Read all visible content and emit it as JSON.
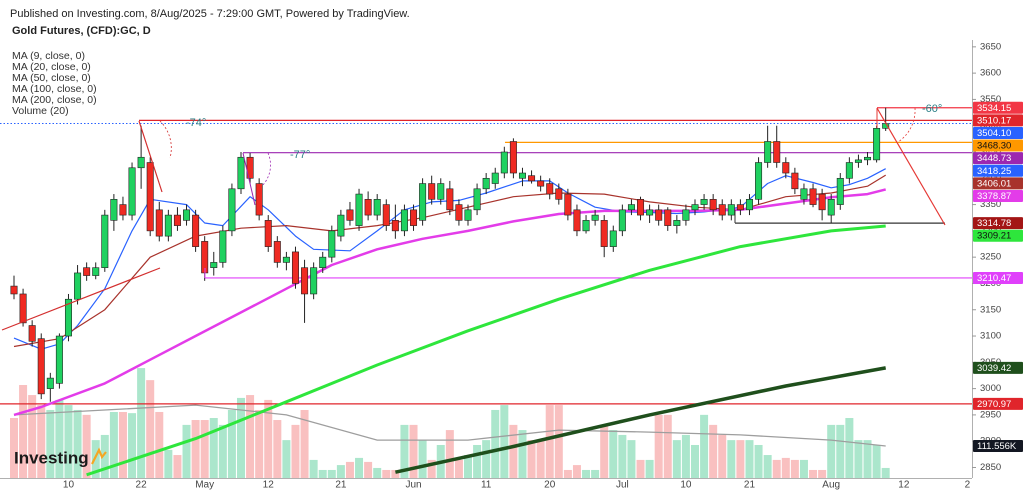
{
  "header": {
    "published": "Published on Investing.com, 8/Aug/2025 - 7:29:00 GMT, Powered by TradingView."
  },
  "logo": "Investing",
  "chart_data": {
    "type": "candlestick",
    "title": "Gold Futures, (CFD):GC, D",
    "categories": [
      null,
      null,
      null,
      null,
      null,
      null,
      "10",
      null,
      null,
      null,
      null,
      null,
      null,
      null,
      "22",
      null,
      null,
      null,
      null,
      null,
      null,
      "May",
      null,
      null,
      null,
      null,
      null,
      null,
      "12",
      null,
      null,
      null,
      null,
      null,
      null,
      null,
      "21",
      null,
      null,
      null,
      null,
      null,
      null,
      null,
      "Jun",
      null,
      null,
      null,
      null,
      null,
      null,
      null,
      "11",
      null,
      null,
      null,
      null,
      null,
      null,
      "20",
      null,
      null,
      null,
      null,
      null,
      null,
      null,
      "Jul",
      null,
      null,
      null,
      null,
      null,
      null,
      "10",
      null,
      null,
      null,
      null,
      null,
      null,
      "21",
      null,
      null,
      null,
      null,
      null,
      null,
      null,
      null,
      "Aug",
      null,
      null,
      null,
      null,
      null,
      null,
      null,
      "12",
      null,
      null,
      null,
      null,
      null,
      null,
      "2"
    ],
    "open": [
      3195,
      3180,
      3120,
      3095,
      3000,
      3010,
      3100,
      3170,
      3230,
      3215,
      3230,
      3320,
      3350,
      3330,
      3420,
      3430,
      3340,
      3290,
      3330,
      3320,
      3330,
      3280,
      3230,
      3240,
      3300,
      3380,
      3440,
      3390,
      3320,
      3280,
      3240,
      3260,
      3230,
      3180,
      3230,
      3250,
      3290,
      3340,
      3310,
      3360,
      3330,
      3350,
      3320,
      3300,
      3340,
      3320,
      3390,
      3360,
      3380,
      3350,
      3320,
      3340,
      3380,
      3390,
      3410,
      3470,
      3400,
      3405,
      3395,
      3390,
      3380,
      3370,
      3340,
      3300,
      3320,
      3320,
      3270,
      3300,
      3340,
      3360,
      3330,
      3340,
      3340,
      3310,
      3320,
      3340,
      3350,
      3360,
      3350,
      3330,
      3350,
      3340,
      3360,
      3430,
      3470,
      3430,
      3410,
      3360,
      3380,
      3370,
      3330,
      3350,
      3400,
      3430,
      3435,
      3435,
      3495,
      null,
      null,
      null,
      null,
      null,
      null,
      null,
      null,
      null
    ],
    "high": [
      3215,
      3190,
      3130,
      3105,
      3030,
      3105,
      3180,
      3235,
      3240,
      3240,
      3340,
      3370,
      3365,
      3430,
      3500,
      3440,
      3355,
      3340,
      3345,
      3350,
      3340,
      3290,
      3260,
      3310,
      3390,
      3450,
      3448,
      3400,
      3330,
      3290,
      3260,
      3270,
      3245,
      3240,
      3260,
      3310,
      3340,
      3355,
      3380,
      3375,
      3370,
      3360,
      3350,
      3350,
      3350,
      3400,
      3405,
      3400,
      3395,
      3360,
      3350,
      3390,
      3410,
      3420,
      3460,
      3476,
      3420,
      3415,
      3405,
      3400,
      3390,
      3380,
      3350,
      3330,
      3340,
      3330,
      3310,
      3350,
      3360,
      3365,
      3350,
      3350,
      3345,
      3330,
      3350,
      3360,
      3370,
      3370,
      3360,
      3360,
      3360,
      3370,
      3440,
      3500,
      3500,
      3440,
      3420,
      3390,
      3390,
      3380,
      3370,
      3410,
      3440,
      3445,
      3450,
      3500,
      3534.15,
      null,
      null,
      null,
      null,
      null,
      null,
      null,
      null,
      null
    ],
    "low": [
      3170,
      3118,
      3080,
      2980,
      2975,
      3000,
      3090,
      3160,
      3205,
      3208,
      3222,
      3300,
      3320,
      3320,
      3380,
      3290,
      3280,
      3280,
      3300,
      3310,
      3260,
      3205,
      3215,
      3230,
      3290,
      3370,
      3390,
      3320,
      3260,
      3230,
      3225,
      3190,
      3125,
      3170,
      3220,
      3240,
      3280,
      3310,
      3300,
      3320,
      3320,
      3300,
      3285,
      3290,
      3300,
      3310,
      3350,
      3350,
      3330,
      3310,
      3310,
      3330,
      3370,
      3380,
      3400,
      3400,
      3385,
      3390,
      3375,
      3360,
      3350,
      3320,
      3290,
      3295,
      3310,
      3250,
      3260,
      3290,
      3330,
      3320,
      3315,
      3310,
      3300,
      3295,
      3310,
      3330,
      3340,
      3330,
      3320,
      3320,
      3330,
      3330,
      3350,
      3420,
      3420,
      3400,
      3370,
      3350,
      3345,
      3320,
      3315,
      3340,
      3390,
      3420,
      3425,
      3430,
      3490,
      null,
      null,
      null,
      null,
      null,
      null,
      null,
      null,
      null
    ],
    "close": [
      3180,
      3125,
      3090,
      2990,
      3020,
      3100,
      3170,
      3220,
      3215,
      3230,
      3330,
      3360,
      3330,
      3420,
      3440,
      3300,
      3290,
      3330,
      3310,
      3340,
      3270,
      3220,
      3240,
      3300,
      3380,
      3440,
      3400,
      3330,
      3270,
      3240,
      3250,
      3200,
      3180,
      3230,
      3250,
      3300,
      3330,
      3320,
      3370,
      3330,
      3360,
      3310,
      3300,
      3340,
      3310,
      3390,
      3360,
      3390,
      3340,
      3320,
      3340,
      3380,
      3400,
      3410,
      3450,
      3410,
      3410,
      3395,
      3385,
      3370,
      3360,
      3330,
      3300,
      3320,
      3330,
      3270,
      3300,
      3340,
      3350,
      3330,
      3340,
      3320,
      3310,
      3320,
      3340,
      3350,
      3360,
      3340,
      3330,
      3350,
      3340,
      3360,
      3430,
      3470,
      3430,
      3410,
      3380,
      3380,
      3350,
      3340,
      3360,
      3400,
      3430,
      3435,
      3440,
      3495,
      3504.1,
      null,
      null,
      null,
      null,
      null,
      null,
      null,
      null,
      null
    ],
    "up_color": "#1fd160",
    "down_color": "#ef2a22",
    "ylim": [
      2830,
      3663
    ],
    "yticks": [
      2850,
      2900,
      2950,
      3000,
      3050,
      3100,
      3150,
      3200,
      3250,
      3300,
      3350,
      3400,
      3450,
      3500,
      3550,
      3600,
      3650
    ],
    "moving_averages": [
      {
        "name": "MA (9, close, 0)",
        "color": "#2962ff",
        "width": 1.2,
        "x": [
          0,
          3,
          5,
          7,
          10,
          13,
          15,
          19,
          21,
          23,
          26,
          28,
          31,
          33,
          37,
          40,
          43,
          46,
          49,
          52,
          56,
          59,
          61,
          64,
          67,
          70,
          73,
          76,
          78,
          80,
          83,
          85,
          88,
          90,
          92,
          94,
          96
        ],
        "values": [
          3096,
          3075,
          3085,
          3120,
          3190,
          3300,
          3360,
          3350,
          3315,
          3310,
          3365,
          3340,
          3290,
          3265,
          3262,
          3300,
          3340,
          3355,
          3358,
          3372,
          3395,
          3395,
          3372,
          3345,
          3336,
          3335,
          3333,
          3336,
          3340,
          3345,
          3390,
          3405,
          3392,
          3382,
          3388,
          3400,
          3418.25
        ],
        "last_label": "3418.25"
      },
      {
        "name": "MA (20, close, 0)",
        "color": "#a8332c",
        "width": 1.2,
        "x": [
          0,
          5,
          10,
          15,
          20,
          25,
          30,
          35,
          40,
          45,
          50,
          55,
          60,
          65,
          70,
          75,
          80,
          85,
          90,
          94,
          96
        ],
        "values": [
          3080,
          3095,
          3150,
          3250,
          3290,
          3305,
          3310,
          3300,
          3310,
          3325,
          3345,
          3365,
          3372,
          3370,
          3355,
          3345,
          3340,
          3365,
          3372,
          3385,
          3406.01
        ],
        "last_label": "3406.01"
      },
      {
        "name": "MA (50, close, 0)",
        "color": "#e33ce9",
        "width": 2.5,
        "x": [
          0,
          3,
          10,
          15,
          20,
          25,
          30,
          35,
          40,
          45,
          50,
          55,
          60,
          65,
          70,
          75,
          80,
          85,
          90,
          94,
          96
        ],
        "values": [
          2950,
          2965,
          3010,
          3055,
          3100,
          3145,
          3190,
          3235,
          3265,
          3285,
          3300,
          3318,
          3332,
          3338,
          3338,
          3338,
          3340,
          3352,
          3364,
          3370,
          3378.87
        ],
        "last_label": "3378.87"
      },
      {
        "name": "MA (100, close, 0)",
        "color": "#2ee63c",
        "width": 3,
        "x": [
          8,
          20,
          30,
          40,
          50,
          60,
          70,
          80,
          90,
          96
        ],
        "values": [
          2836,
          2905,
          2975,
          3045,
          3110,
          3170,
          3225,
          3270,
          3300,
          3309.21
        ],
        "last_label": "3309.21"
      },
      {
        "name": "MA (200, close, 0)",
        "color": "#1f4f1c",
        "width": 3.5,
        "x": [
          42,
          55,
          70,
          85,
          96
        ],
        "values": [
          2841,
          2890,
          2950,
          3005,
          3039.42
        ],
        "last_label": "3039.42"
      }
    ],
    "volume": {
      "name": "Volume (20)",
      "ylim": [
        0,
        1526
      ],
      "up_color": "#a2e3c6",
      "down_color": "#f8b9b9",
      "values": [
        209,
        324,
        289,
        254,
        237,
        272,
        254,
        237,
        220,
        132,
        150,
        230,
        230,
        226,
        383,
        341,
        230,
        98,
        80,
        185,
        202,
        202,
        209,
        185,
        237,
        279,
        289,
        237,
        272,
        202,
        132,
        185,
        237,
        63,
        28,
        28,
        45,
        56,
        70,
        56,
        35,
        28,
        28,
        185,
        185,
        132,
        63,
        115,
        167,
        63,
        80,
        115,
        132,
        237,
        254,
        185,
        167,
        132,
        132,
        254,
        254,
        28,
        45,
        28,
        28,
        185,
        167,
        150,
        132,
        63,
        63,
        220,
        220,
        132,
        150,
        115,
        220,
        185,
        150,
        132,
        132,
        132,
        115,
        80,
        63,
        70,
        63,
        63,
        28,
        28,
        185,
        185,
        209,
        132,
        132,
        115,
        35,
        null,
        null,
        null,
        null,
        null,
        null,
        null,
        null,
        null
      ],
      "ma_color": "#9e9e9e",
      "ma_x": [
        0,
        10,
        20,
        30,
        40,
        50,
        60,
        70,
        80,
        90,
        96
      ],
      "ma_values": [
        220,
        237,
        254,
        220,
        132,
        132,
        167,
        160,
        150,
        132,
        111.556
      ],
      "ma_last_label": "111.556K",
      "label_color": "#131722"
    },
    "levels": [
      {
        "value": 3534.15,
        "label": "3534.15",
        "color": "#f23645"
      },
      {
        "value": 3510.17,
        "label": "3510.17",
        "color": "#e0252b"
      },
      {
        "value": 3468.3,
        "label": "3468.30",
        "color": "#ff9800"
      },
      {
        "value": 3448.73,
        "label": "3448.73",
        "color": "#9c27b0"
      },
      {
        "value": 3314.78,
        "label": "3314.78",
        "color": "#a31515"
      },
      {
        "value": 3210.47,
        "label": "3210.47",
        "color": "#e040fb"
      },
      {
        "value": 2970.97,
        "label": "2970.97",
        "color": "#e0252b"
      }
    ],
    "last_price": {
      "value": 3504.1,
      "label": "3504.10",
      "color": "#2962ff"
    },
    "annotations": [
      "-74°",
      "-77°",
      "-60°"
    ]
  }
}
